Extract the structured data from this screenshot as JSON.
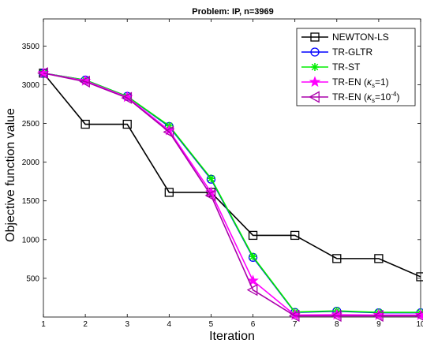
{
  "chart_data": {
    "type": "line",
    "title": "Problem: IP, n=3969",
    "xlabel": "Iteration",
    "ylabel": "Objective function value",
    "xlim": [
      1,
      10
    ],
    "ylim": [
      0,
      3850
    ],
    "grid": false,
    "legend_position": "top-right",
    "x": [
      1,
      2,
      3,
      4,
      5,
      6,
      7,
      8,
      9,
      10
    ],
    "x_ticks": [
      "1",
      "2",
      "3",
      "4",
      "5",
      "6",
      "7",
      "8",
      "9",
      "10"
    ],
    "y_ticks": [
      "500",
      "1000",
      "1500",
      "2000",
      "2500",
      "3000",
      "3500"
    ],
    "series": [
      {
        "name": "NEWTON-LS",
        "color": "#000000",
        "marker": "square",
        "values": [
          3150,
          2490,
          2490,
          1610,
          1610,
          1055,
          1055,
          755,
          755,
          520
        ]
      },
      {
        "name": "TR-GLTR",
        "color": "#0000ff",
        "marker": "circle",
        "values": [
          3150,
          3060,
          2850,
          2460,
          1780,
          770,
          60,
          75,
          55,
          55
        ]
      },
      {
        "name": "TR-ST",
        "color": "#00ee00",
        "marker": "asterisk",
        "values": [
          3150,
          3060,
          2850,
          2470,
          1790,
          780,
          65,
          80,
          60,
          60
        ]
      },
      {
        "name": "TR-EN (κs=1)",
        "name_main": "TR-EN (",
        "name_sym": "κ",
        "name_sub": "s",
        "name_rest": "=1)",
        "color": "#ff00ff",
        "marker": "star",
        "values": [
          3150,
          3050,
          2840,
          2410,
          1610,
          470,
          25,
          30,
          25,
          25
        ]
      },
      {
        "name": "TR-EN (κs=10^-4)",
        "name_main": "TR-EN (",
        "name_sym": "κ",
        "name_sub": "s",
        "name_rest": "=10",
        "name_sup": "-4",
        "name_end": ")",
        "color": "#aa00aa",
        "marker": "triangle-left",
        "values": [
          3150,
          3040,
          2830,
          2390,
          1570,
          350,
          15,
          15,
          15,
          15
        ]
      }
    ]
  }
}
